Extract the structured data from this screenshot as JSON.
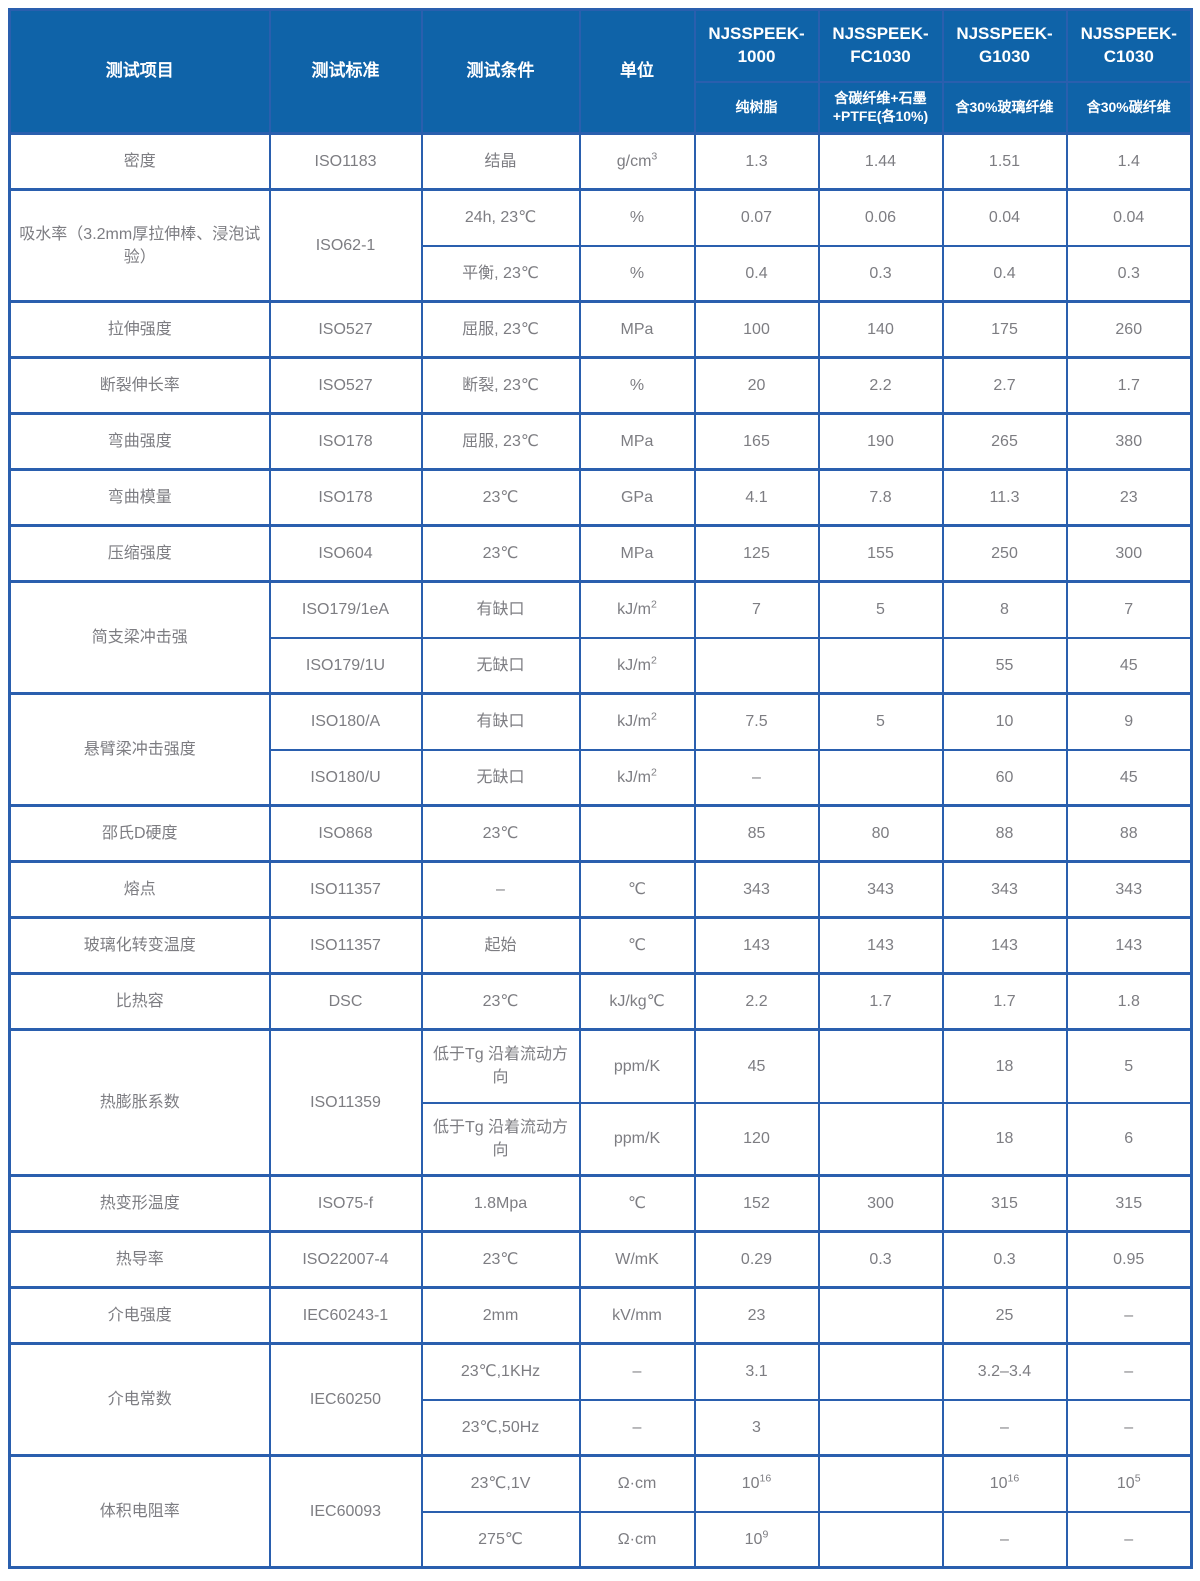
{
  "colors": {
    "header_bg": "#0f63a8",
    "grid_border": "#2a5fae",
    "header_text": "#ffffff",
    "cell_text": "#7d7d82",
    "page_bg": "#ffffff"
  },
  "table": {
    "column_headers": [
      "测试项目",
      "测试标准",
      "测试条件",
      "单位"
    ],
    "products": [
      {
        "name": "NJSSPEEK-\n1000",
        "desc": "纯树脂"
      },
      {
        "name": "NJSSPEEK-\nFC1030",
        "desc": "含碳纤维+石墨\n+PTFE(各10%)"
      },
      {
        "name": "NJSSPEEK-\nG1030",
        "desc": "含30%玻璃纤维"
      },
      {
        "name": "NJSSPEEK-\nC1030",
        "desc": "含30%碳纤维"
      }
    ],
    "rows": [
      {
        "cells": [
          {
            "t": "密度"
          },
          {
            "t": "ISO1183"
          },
          {
            "t": "结晶"
          },
          {
            "t": "g/cm^3"
          },
          {
            "t": "1.3"
          },
          {
            "t": "1.44"
          },
          {
            "t": "1.51"
          },
          {
            "t": "1.4"
          }
        ]
      },
      {
        "cells": [
          {
            "t": "吸水率（3.2mm厚拉伸棒、浸泡试验）",
            "rs": 2
          },
          {
            "t": "ISO62-1",
            "rs": 2
          },
          {
            "t": "24h, 23℃"
          },
          {
            "t": "%"
          },
          {
            "t": "0.07"
          },
          {
            "t": "0.06"
          },
          {
            "t": "0.04"
          },
          {
            "t": "0.04"
          }
        ]
      },
      {
        "cells": [
          {
            "t": "平衡, 23℃"
          },
          {
            "t": "%"
          },
          {
            "t": "0.4"
          },
          {
            "t": "0.3"
          },
          {
            "t": "0.4"
          },
          {
            "t": "0.3"
          }
        ]
      },
      {
        "cells": [
          {
            "t": "拉伸强度"
          },
          {
            "t": "ISO527"
          },
          {
            "t": "屈服, 23℃"
          },
          {
            "t": "MPa"
          },
          {
            "t": "100"
          },
          {
            "t": "140"
          },
          {
            "t": "175"
          },
          {
            "t": "260"
          }
        ]
      },
      {
        "cells": [
          {
            "t": "断裂伸长率"
          },
          {
            "t": "ISO527"
          },
          {
            "t": "断裂, 23℃"
          },
          {
            "t": "%"
          },
          {
            "t": "20"
          },
          {
            "t": "2.2"
          },
          {
            "t": "2.7"
          },
          {
            "t": "1.7"
          }
        ]
      },
      {
        "cells": [
          {
            "t": "弯曲强度"
          },
          {
            "t": "ISO178"
          },
          {
            "t": "屈服, 23℃"
          },
          {
            "t": "MPa"
          },
          {
            "t": "165"
          },
          {
            "t": "190"
          },
          {
            "t": "265"
          },
          {
            "t": "380"
          }
        ]
      },
      {
        "cells": [
          {
            "t": "弯曲模量"
          },
          {
            "t": "ISO178"
          },
          {
            "t": "23℃"
          },
          {
            "t": "GPa"
          },
          {
            "t": "4.1"
          },
          {
            "t": "7.8"
          },
          {
            "t": "11.3"
          },
          {
            "t": "23"
          }
        ]
      },
      {
        "cells": [
          {
            "t": "压缩强度"
          },
          {
            "t": "ISO604"
          },
          {
            "t": "23℃"
          },
          {
            "t": "MPa"
          },
          {
            "t": "125"
          },
          {
            "t": "155"
          },
          {
            "t": "250"
          },
          {
            "t": "300"
          }
        ]
      },
      {
        "cells": [
          {
            "t": "简支梁冲击强",
            "rs": 2
          },
          {
            "t": "ISO179/1eA"
          },
          {
            "t": "有缺口"
          },
          {
            "t": "kJ/m^2"
          },
          {
            "t": "7"
          },
          {
            "t": "5"
          },
          {
            "t": "8"
          },
          {
            "t": "7"
          }
        ]
      },
      {
        "cells": [
          {
            "t": "ISO179/1U"
          },
          {
            "t": "无缺口"
          },
          {
            "t": "kJ/m^2"
          },
          {
            "t": ""
          },
          {
            "t": ""
          },
          {
            "t": "55"
          },
          {
            "t": "45"
          }
        ]
      },
      {
        "cells": [
          {
            "t": "悬臂梁冲击强度",
            "rs": 2
          },
          {
            "t": "ISO180/A"
          },
          {
            "t": "有缺口"
          },
          {
            "t": "kJ/m^2"
          },
          {
            "t": "7.5"
          },
          {
            "t": "5"
          },
          {
            "t": "10"
          },
          {
            "t": "9"
          }
        ]
      },
      {
        "cells": [
          {
            "t": "ISO180/U"
          },
          {
            "t": "无缺口"
          },
          {
            "t": "kJ/m^2"
          },
          {
            "t": "–"
          },
          {
            "t": ""
          },
          {
            "t": "60"
          },
          {
            "t": "45"
          }
        ]
      },
      {
        "cells": [
          {
            "t": "邵氏D硬度"
          },
          {
            "t": "ISO868"
          },
          {
            "t": "23℃"
          },
          {
            "t": ""
          },
          {
            "t": "85"
          },
          {
            "t": "80"
          },
          {
            "t": "88"
          },
          {
            "t": "88"
          }
        ]
      },
      {
        "cells": [
          {
            "t": "熔点"
          },
          {
            "t": "ISO11357"
          },
          {
            "t": "–"
          },
          {
            "t": "℃"
          },
          {
            "t": "343"
          },
          {
            "t": "343"
          },
          {
            "t": "343"
          },
          {
            "t": "343"
          }
        ]
      },
      {
        "cells": [
          {
            "t": "玻璃化转变温度"
          },
          {
            "t": "ISO11357"
          },
          {
            "t": "起始"
          },
          {
            "t": "℃"
          },
          {
            "t": "143"
          },
          {
            "t": "143"
          },
          {
            "t": "143"
          },
          {
            "t": "143"
          }
        ]
      },
      {
        "cells": [
          {
            "t": "比热容"
          },
          {
            "t": "DSC"
          },
          {
            "t": "23℃"
          },
          {
            "t": "kJ/kg℃"
          },
          {
            "t": "2.2"
          },
          {
            "t": "1.7"
          },
          {
            "t": "1.7"
          },
          {
            "t": "1.8"
          }
        ]
      },
      {
        "cells": [
          {
            "t": "热膨胀系数",
            "rs": 2
          },
          {
            "t": "ISO11359",
            "rs": 2
          },
          {
            "t": "低于Tg 沿着流动方向"
          },
          {
            "t": "ppm/K"
          },
          {
            "t": "45"
          },
          {
            "t": ""
          },
          {
            "t": "18"
          },
          {
            "t": "5"
          }
        ]
      },
      {
        "cells": [
          {
            "t": "低于Tg 沿着流动方向"
          },
          {
            "t": "ppm/K"
          },
          {
            "t": "120"
          },
          {
            "t": ""
          },
          {
            "t": "18"
          },
          {
            "t": "6"
          }
        ]
      },
      {
        "cells": [
          {
            "t": "热变形温度"
          },
          {
            "t": "ISO75-f"
          },
          {
            "t": "1.8Mpa"
          },
          {
            "t": "℃"
          },
          {
            "t": "152"
          },
          {
            "t": "300"
          },
          {
            "t": "315"
          },
          {
            "t": "315"
          }
        ]
      },
      {
        "cells": [
          {
            "t": "热导率"
          },
          {
            "t": "ISO22007-4"
          },
          {
            "t": "23℃"
          },
          {
            "t": "W/mK"
          },
          {
            "t": "0.29"
          },
          {
            "t": "0.3"
          },
          {
            "t": "0.3"
          },
          {
            "t": "0.95"
          }
        ]
      },
      {
        "cells": [
          {
            "t": "介电强度"
          },
          {
            "t": "IEC60243-1"
          },
          {
            "t": "2mm"
          },
          {
            "t": "kV/mm"
          },
          {
            "t": "23"
          },
          {
            "t": ""
          },
          {
            "t": "25"
          },
          {
            "t": "–"
          }
        ]
      },
      {
        "cells": [
          {
            "t": "介电常数",
            "rs": 2
          },
          {
            "t": "IEC60250",
            "rs": 2
          },
          {
            "t": "23℃,1KHz"
          },
          {
            "t": "–"
          },
          {
            "t": "3.1"
          },
          {
            "t": ""
          },
          {
            "t": "3.2–3.4"
          },
          {
            "t": "–"
          }
        ]
      },
      {
        "cells": [
          {
            "t": "23℃,50Hz"
          },
          {
            "t": "–"
          },
          {
            "t": "3"
          },
          {
            "t": ""
          },
          {
            "t": "–"
          },
          {
            "t": "–"
          }
        ]
      },
      {
        "cells": [
          {
            "t": "体积电阻率",
            "rs": 2
          },
          {
            "t": "IEC60093",
            "rs": 2
          },
          {
            "t": "23℃,1V"
          },
          {
            "t": "Ω·cm"
          },
          {
            "t": "10^16"
          },
          {
            "t": ""
          },
          {
            "t": "10^16"
          },
          {
            "t": "10^5"
          }
        ]
      },
      {
        "cells": [
          {
            "t": "275℃"
          },
          {
            "t": "Ω·cm"
          },
          {
            "t": "10^9"
          },
          {
            "t": ""
          },
          {
            "t": "–"
          },
          {
            "t": "–"
          }
        ]
      }
    ]
  }
}
